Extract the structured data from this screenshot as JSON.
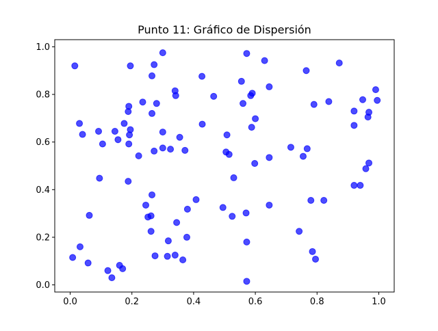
{
  "colors": {
    "point": "#0000ff",
    "axis": "#000000",
    "background": "#ffffff"
  },
  "chart_data": {
    "type": "scatter",
    "title": "Punto 11: Gráfico de Dispersión",
    "xlabel": "",
    "ylabel": "",
    "xlim": [
      -0.05,
      1.05
    ],
    "ylim": [
      -0.03,
      1.03
    ],
    "grid": false,
    "xticks": [
      0.0,
      0.2,
      0.4,
      0.6,
      0.8,
      1.0
    ],
    "yticks": [
      0.0,
      0.2,
      0.4,
      0.6,
      0.8,
      1.0
    ],
    "xtick_labels": [
      "0.0",
      "0.2",
      "0.4",
      "0.6",
      "0.8",
      "1.0"
    ],
    "ytick_labels": [
      "0.0",
      "0.2",
      "0.4",
      "0.6",
      "0.8",
      "1.0"
    ],
    "marker_alpha": 0.7,
    "points": [
      [
        0.015,
        0.92
      ],
      [
        0.195,
        0.92
      ],
      [
        0.3,
        0.975
      ],
      [
        0.272,
        0.925
      ],
      [
        0.572,
        0.972
      ],
      [
        0.63,
        0.942
      ],
      [
        0.765,
        0.9
      ],
      [
        0.872,
        0.932
      ],
      [
        0.265,
        0.878
      ],
      [
        0.427,
        0.876
      ],
      [
        0.555,
        0.855
      ],
      [
        0.645,
        0.832
      ],
      [
        0.99,
        0.82
      ],
      [
        0.34,
        0.815
      ],
      [
        0.59,
        0.805
      ],
      [
        0.585,
        0.795
      ],
      [
        0.342,
        0.795
      ],
      [
        0.465,
        0.792
      ],
      [
        0.948,
        0.778
      ],
      [
        0.995,
        0.775
      ],
      [
        0.235,
        0.768
      ],
      [
        0.28,
        0.762
      ],
      [
        0.56,
        0.762
      ],
      [
        0.838,
        0.77
      ],
      [
        0.79,
        0.758
      ],
      [
        0.19,
        0.75
      ],
      [
        0.188,
        0.728
      ],
      [
        0.265,
        0.72
      ],
      [
        0.92,
        0.73
      ],
      [
        0.968,
        0.725
      ],
      [
        0.6,
        0.698
      ],
      [
        0.965,
        0.705
      ],
      [
        0.03,
        0.678
      ],
      [
        0.175,
        0.678
      ],
      [
        0.428,
        0.675
      ],
      [
        0.588,
        0.662
      ],
      [
        0.92,
        0.67
      ],
      [
        0.195,
        0.652
      ],
      [
        0.145,
        0.645
      ],
      [
        0.092,
        0.645
      ],
      [
        0.04,
        0.632
      ],
      [
        0.192,
        0.63
      ],
      [
        0.3,
        0.642
      ],
      [
        0.508,
        0.63
      ],
      [
        0.355,
        0.62
      ],
      [
        0.155,
        0.61
      ],
      [
        0.105,
        0.592
      ],
      [
        0.19,
        0.592
      ],
      [
        0.3,
        0.575
      ],
      [
        0.325,
        0.57
      ],
      [
        0.715,
        0.578
      ],
      [
        0.768,
        0.572
      ],
      [
        0.272,
        0.562
      ],
      [
        0.372,
        0.565
      ],
      [
        0.505,
        0.558
      ],
      [
        0.515,
        0.548
      ],
      [
        0.222,
        0.542
      ],
      [
        0.645,
        0.535
      ],
      [
        0.755,
        0.54
      ],
      [
        0.598,
        0.51
      ],
      [
        0.968,
        0.512
      ],
      [
        0.958,
        0.488
      ],
      [
        0.53,
        0.45
      ],
      [
        0.095,
        0.448
      ],
      [
        0.188,
        0.435
      ],
      [
        0.92,
        0.418
      ],
      [
        0.94,
        0.418
      ],
      [
        0.265,
        0.378
      ],
      [
        0.408,
        0.358
      ],
      [
        0.78,
        0.355
      ],
      [
        0.822,
        0.355
      ],
      [
        0.245,
        0.335
      ],
      [
        0.645,
        0.335
      ],
      [
        0.495,
        0.325
      ],
      [
        0.38,
        0.318
      ],
      [
        0.062,
        0.292
      ],
      [
        0.262,
        0.29
      ],
      [
        0.252,
        0.285
      ],
      [
        0.525,
        0.288
      ],
      [
        0.57,
        0.302
      ],
      [
        0.345,
        0.262
      ],
      [
        0.262,
        0.225
      ],
      [
        0.742,
        0.225
      ],
      [
        0.378,
        0.2
      ],
      [
        0.318,
        0.185
      ],
      [
        0.572,
        0.18
      ],
      [
        0.032,
        0.16
      ],
      [
        0.785,
        0.14
      ],
      [
        0.008,
        0.115
      ],
      [
        0.275,
        0.122
      ],
      [
        0.315,
        0.12
      ],
      [
        0.34,
        0.125
      ],
      [
        0.365,
        0.105
      ],
      [
        0.795,
        0.108
      ],
      [
        0.058,
        0.092
      ],
      [
        0.16,
        0.082
      ],
      [
        0.17,
        0.068
      ],
      [
        0.122,
        0.06
      ],
      [
        0.135,
        0.03
      ],
      [
        0.572,
        0.015
      ]
    ]
  }
}
